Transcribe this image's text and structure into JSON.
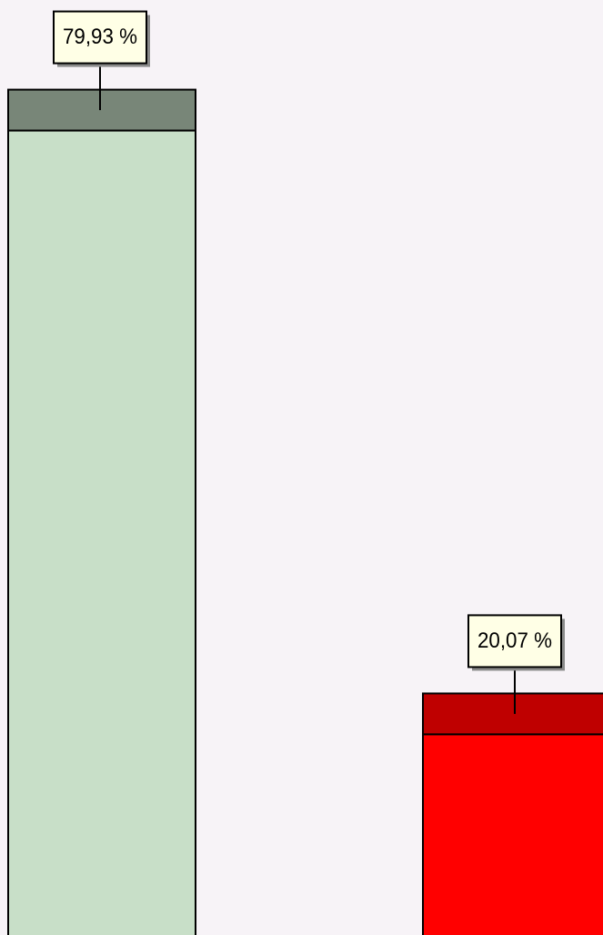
{
  "chart_data": {
    "type": "bar",
    "values": [
      79.93,
      20.07
    ],
    "value_labels": [
      "79,93 %",
      "20,07 %"
    ],
    "colors": [
      "#c8dfc8",
      "#ff0000"
    ]
  }
}
